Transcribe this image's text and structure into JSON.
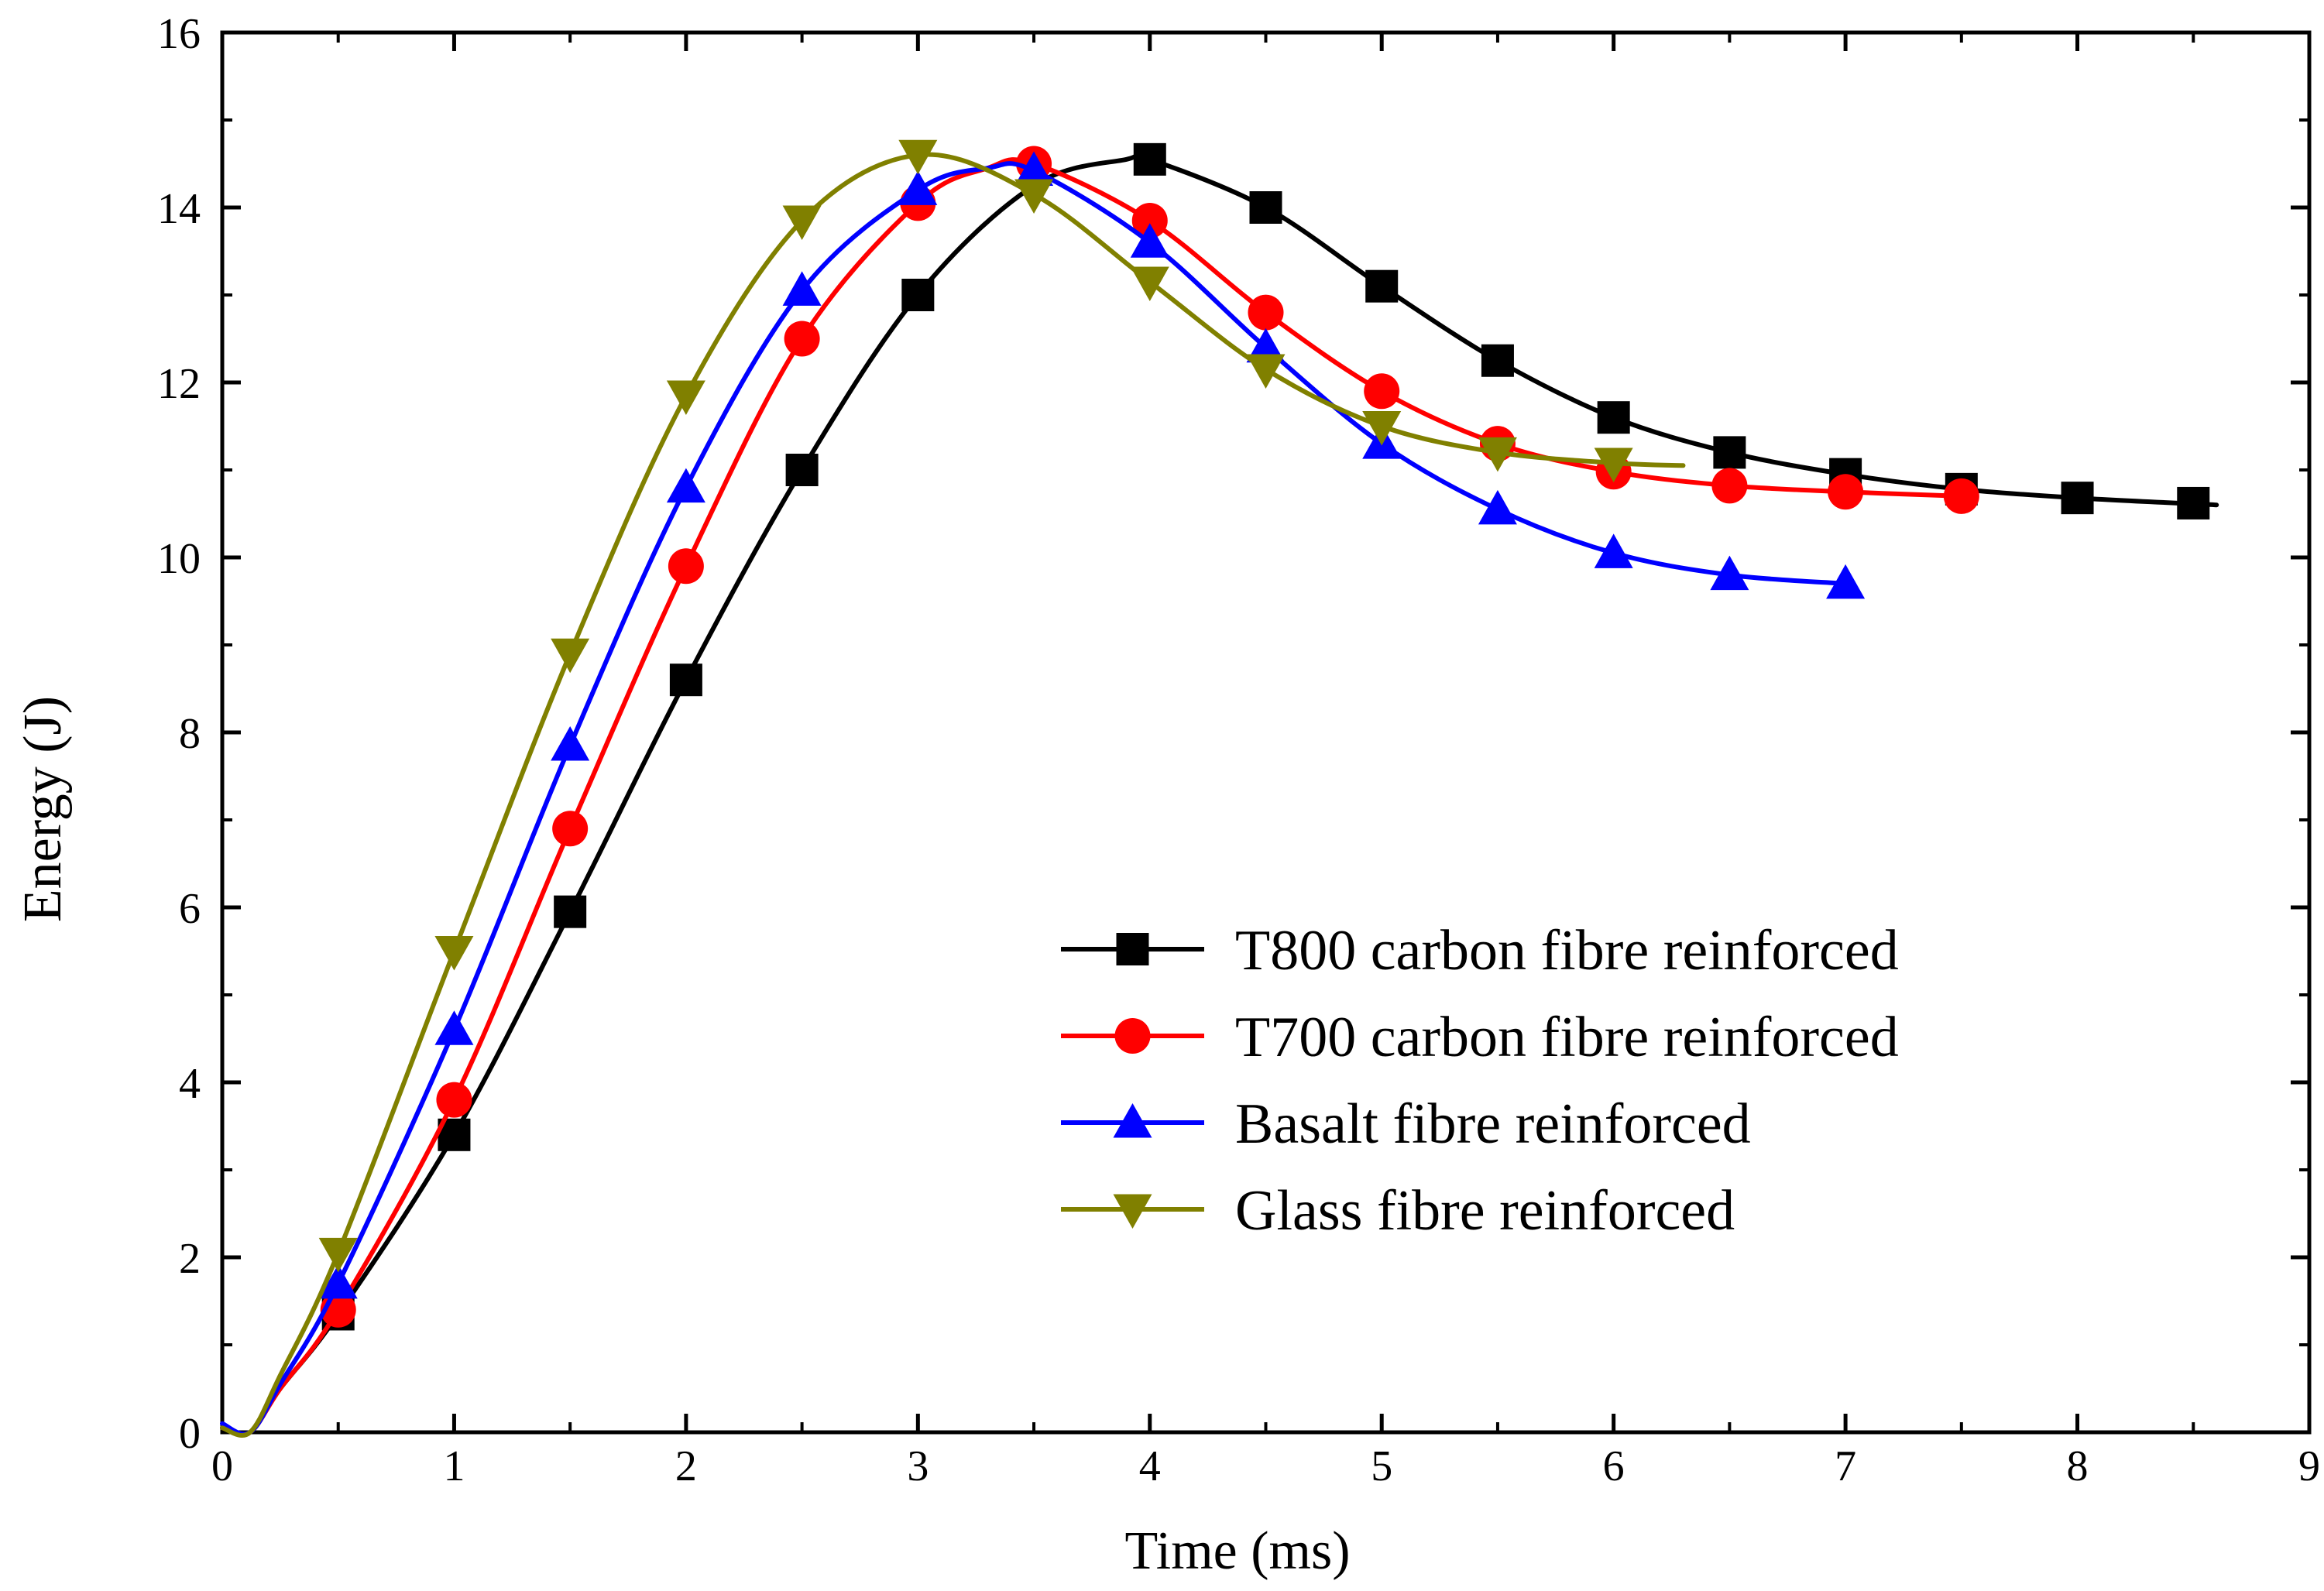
{
  "chart_data": {
    "type": "line",
    "title": "",
    "xlabel": "Time (ms)",
    "ylabel": "Energy (J)",
    "xlim": [
      0,
      9
    ],
    "ylim": [
      0,
      16
    ],
    "x_ticks": [
      "0",
      "1",
      "2",
      "3",
      "4",
      "5",
      "6",
      "7",
      "8",
      "9"
    ],
    "y_ticks": [
      "0",
      "2",
      "4",
      "6",
      "8",
      "10",
      "12",
      "14",
      "16"
    ],
    "grid": false,
    "legend_position": "lower-right",
    "series": [
      {
        "name": "T800 carbon fibre reinforced",
        "color": "#000000",
        "marker": "square",
        "curve_x": [
          0,
          0.12,
          0.25,
          0.5,
          1,
          1.5,
          2,
          2.5,
          3,
          3.5,
          3.9,
          4,
          4.5,
          5,
          5.5,
          6,
          6.5,
          7,
          7.5,
          8,
          8.6
        ],
        "curve_y": [
          0.05,
          0.0,
          0.5,
          1.35,
          3.4,
          5.95,
          8.6,
          11.0,
          13.0,
          14.25,
          14.55,
          14.55,
          14.0,
          13.1,
          12.25,
          11.6,
          11.2,
          10.95,
          10.78,
          10.68,
          10.6
        ],
        "marker_x": [
          0.5,
          1,
          1.5,
          2,
          2.5,
          3,
          4,
          4.5,
          5,
          5.5,
          6,
          6.5,
          7,
          7.5,
          8,
          8.5
        ],
        "marker_y": [
          1.35,
          3.4,
          5.95,
          8.6,
          11.0,
          13.0,
          14.55,
          14.0,
          13.1,
          12.25,
          11.6,
          11.2,
          10.95,
          10.78,
          10.68,
          10.62
        ]
      },
      {
        "name": "T700 carbon fibre reinforced",
        "color": "#ff0000",
        "marker": "circle",
        "curve_x": [
          0,
          0.12,
          0.25,
          0.5,
          1,
          1.5,
          2,
          2.5,
          3,
          3.3,
          3.5,
          4,
          4.5,
          5,
          5.5,
          6,
          6.5,
          7,
          7.5
        ],
        "curve_y": [
          0.05,
          0.0,
          0.5,
          1.4,
          3.8,
          6.9,
          9.9,
          12.5,
          14.05,
          14.45,
          14.5,
          13.85,
          12.8,
          11.9,
          11.3,
          10.98,
          10.82,
          10.75,
          10.7
        ],
        "marker_x": [
          0.5,
          1,
          1.5,
          2,
          2.5,
          3,
          3.5,
          4,
          4.5,
          5,
          5.5,
          6,
          6.5,
          7,
          7.5
        ],
        "marker_y": [
          1.4,
          3.8,
          6.9,
          9.9,
          12.5,
          14.05,
          14.5,
          13.85,
          12.8,
          11.9,
          11.3,
          10.98,
          10.82,
          10.75,
          10.7
        ]
      },
      {
        "name": "Basalt fibre reinforced",
        "color": "#0000ff",
        "marker": "triangle-up",
        "curve_x": [
          0,
          0.12,
          0.25,
          0.5,
          1,
          1.5,
          2,
          2.5,
          3,
          3.3,
          3.5,
          4,
          4.5,
          5,
          5.5,
          6,
          6.5,
          7
        ],
        "curve_y": [
          0.1,
          0.0,
          0.55,
          1.7,
          4.6,
          7.85,
          10.8,
          13.05,
          14.2,
          14.45,
          14.42,
          13.6,
          12.4,
          11.3,
          10.55,
          10.05,
          9.8,
          9.7
        ],
        "marker_x": [
          0.5,
          1,
          1.5,
          2,
          2.5,
          3,
          3.5,
          4,
          4.5,
          5,
          5.5,
          6,
          6.5,
          7
        ],
        "marker_y": [
          1.7,
          4.6,
          7.85,
          10.8,
          13.05,
          14.2,
          14.42,
          13.6,
          12.4,
          11.3,
          10.55,
          10.05,
          9.8,
          9.7
        ]
      },
      {
        "name": "Glass fibre reinforced",
        "color": "#808000",
        "marker": "triangle-down",
        "curve_x": [
          0,
          0.12,
          0.25,
          0.5,
          1,
          1.5,
          2,
          2.5,
          3,
          3.5,
          4,
          4.5,
          5,
          5.5,
          6,
          6.3
        ],
        "curve_y": [
          0.05,
          0.0,
          0.65,
          2.05,
          5.5,
          8.9,
          11.85,
          13.85,
          14.6,
          14.15,
          13.15,
          12.15,
          11.5,
          11.2,
          11.08,
          11.05
        ],
        "marker_x": [
          0.5,
          1,
          1.5,
          2,
          2.5,
          3,
          3.5,
          4,
          4.5,
          5,
          5.5,
          6
        ],
        "marker_y": [
          2.05,
          5.5,
          8.9,
          11.85,
          13.85,
          14.6,
          14.15,
          13.15,
          12.15,
          11.5,
          11.2,
          11.08
        ]
      }
    ]
  }
}
